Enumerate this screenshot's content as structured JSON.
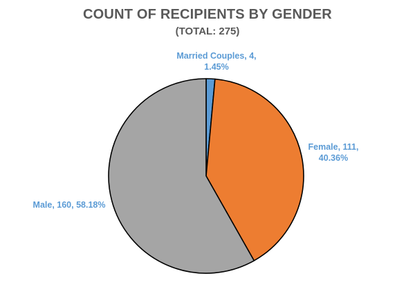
{
  "chart_data": {
    "type": "pie",
    "title": "COUNT OF RECIPIENTS BY GENDER",
    "subtitle": "(TOTAL: 275)",
    "slices": [
      {
        "name": "Married Couples",
        "value": 4,
        "percent": "1.45%",
        "color": "#5b9bd5",
        "label_lines": [
          "Married Couples, 4,",
          "1.45%"
        ]
      },
      {
        "name": "Female",
        "value": 111,
        "percent": "40.36%",
        "color": "#ed7d31",
        "label_lines": [
          "Female, 111,",
          "40.36%"
        ]
      },
      {
        "name": "Male",
        "value": 160,
        "percent": "58.18%",
        "color": "#a5a5a5",
        "label_lines": [
          "Male, 160, 58.18%"
        ]
      }
    ]
  }
}
